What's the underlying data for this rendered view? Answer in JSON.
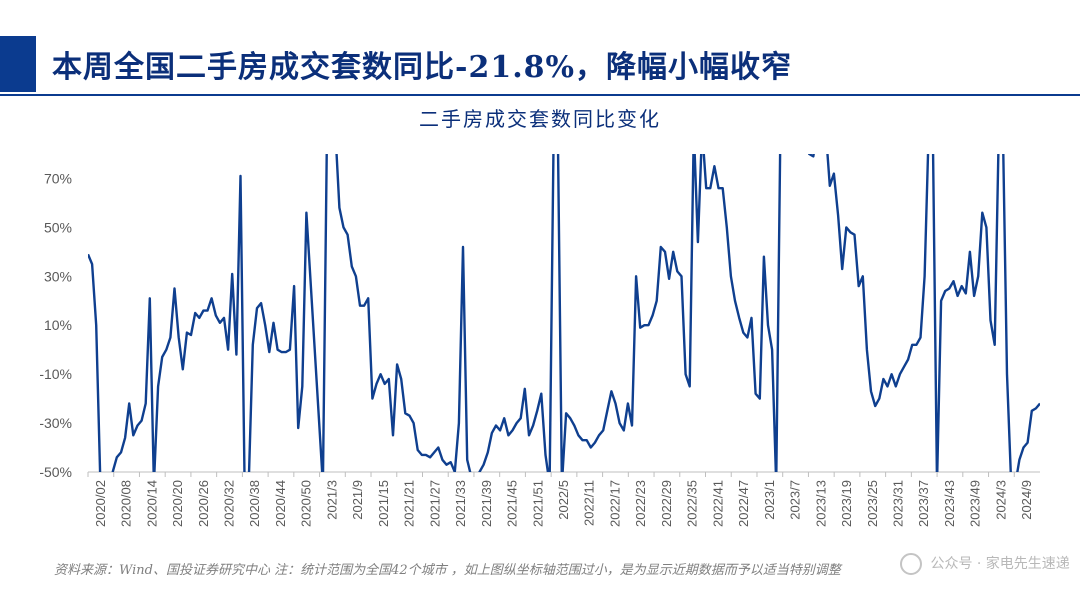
{
  "header": {
    "title": "本周全国二手房成交套数同比-21.8%，降幅小幅收窄"
  },
  "footer": {
    "source_note": "资料来源：Wind、国投证券研究中心 注：统计范围为全国42个城市 ，如上图纵坐标轴范围过小，是为显示近期数据而予以适当特别调整",
    "watermark": "公众号 · 家电先生速递"
  },
  "colors": {
    "line": "#0f3f8f",
    "title": "#0b2f7a",
    "accent_bar": "#0b3b8f"
  },
  "chart_data": {
    "type": "line",
    "title": "二手房成交套数同比变化",
    "xlabel": "",
    "ylabel": "",
    "ylim": [
      -0.5,
      0.8
    ],
    "y_ticks": [
      -0.5,
      -0.3,
      -0.1,
      0.1,
      0.3,
      0.5,
      0.7
    ],
    "y_tick_labels": [
      "-50%",
      "-30%",
      "-10%",
      "10%",
      "30%",
      "50%",
      "70%"
    ],
    "x_tick_labels": [
      "2020/02",
      "2020/08",
      "2020/14",
      "2020/20",
      "2020/26",
      "2020/32",
      "2020/38",
      "2020/44",
      "2020/50",
      "2021/3",
      "2021/9",
      "2021/15",
      "2021/21",
      "2021/27",
      "2021/33",
      "2021/39",
      "2021/45",
      "2021/51",
      "2022/5",
      "2022/11",
      "2022/17",
      "2022/23",
      "2022/29",
      "2022/35",
      "2022/41",
      "2022/47",
      "2023/1",
      "2023/7",
      "2023/13",
      "2023/19",
      "2023/25",
      "2023/31",
      "2023/37",
      "2023/43",
      "2023/49",
      "2024/3",
      "2024/9"
    ],
    "grid": false,
    "legend": "none",
    "series": [
      {
        "name": "",
        "x_unit": "week index from 2020/02",
        "points": [
          [
            0,
            0.39
          ],
          [
            1,
            0.35
          ],
          [
            2,
            0.1
          ],
          [
            3,
            -0.55
          ],
          [
            4,
            -0.55
          ],
          [
            5,
            -0.55
          ],
          [
            6,
            -0.5
          ],
          [
            7,
            -0.44
          ],
          [
            8,
            -0.42
          ],
          [
            9,
            -0.36
          ],
          [
            10,
            -0.22
          ],
          [
            11,
            -0.35
          ],
          [
            12,
            -0.31
          ],
          [
            13,
            -0.29
          ],
          [
            14,
            -0.22
          ],
          [
            15,
            0.21
          ],
          [
            16,
            -0.55
          ],
          [
            17,
            -0.15
          ],
          [
            18,
            -0.03
          ],
          [
            19,
            0.0
          ],
          [
            20,
            0.05
          ],
          [
            21,
            0.25
          ],
          [
            22,
            0.05
          ],
          [
            23,
            -0.08
          ],
          [
            24,
            0.07
          ],
          [
            25,
            0.06
          ],
          [
            26,
            0.15
          ],
          [
            27,
            0.13
          ],
          [
            28,
            0.16
          ],
          [
            29,
            0.16
          ],
          [
            30,
            0.21
          ],
          [
            31,
            0.14
          ],
          [
            32,
            0.11
          ],
          [
            33,
            0.13
          ],
          [
            34,
            0.0
          ],
          [
            35,
            0.31
          ],
          [
            36,
            -0.02
          ],
          [
            37,
            0.71
          ],
          [
            38,
            -0.55
          ],
          [
            39,
            -0.55
          ],
          [
            40,
            0.02
          ],
          [
            41,
            0.17
          ],
          [
            42,
            0.19
          ],
          [
            43,
            0.1
          ],
          [
            44,
            -0.01
          ],
          [
            45,
            0.11
          ],
          [
            46,
            0.0
          ],
          [
            47,
            -0.01
          ],
          [
            48,
            -0.01
          ],
          [
            49,
            0.0
          ],
          [
            50,
            0.26
          ],
          [
            51,
            -0.32
          ],
          [
            52,
            -0.15
          ],
          [
            53,
            0.56
          ],
          [
            57,
            -0.55
          ],
          [
            58,
            0.9
          ],
          [
            59,
            0.9
          ],
          [
            60,
            0.9
          ],
          [
            61,
            0.58
          ],
          [
            62,
            0.5
          ],
          [
            63,
            0.47
          ],
          [
            64,
            0.34
          ],
          [
            65,
            0.3
          ],
          [
            66,
            0.18
          ],
          [
            67,
            0.18
          ],
          [
            68,
            0.21
          ],
          [
            69,
            -0.2
          ],
          [
            70,
            -0.14
          ],
          [
            71,
            -0.1
          ],
          [
            72,
            -0.14
          ],
          [
            73,
            -0.12
          ],
          [
            74,
            -0.35
          ],
          [
            75,
            -0.06
          ],
          [
            76,
            -0.12
          ],
          [
            77,
            -0.26
          ],
          [
            78,
            -0.27
          ],
          [
            79,
            -0.3
          ],
          [
            80,
            -0.41
          ],
          [
            81,
            -0.43
          ],
          [
            82,
            -0.43
          ],
          [
            83,
            -0.44
          ],
          [
            84,
            -0.42
          ],
          [
            85,
            -0.4
          ],
          [
            86,
            -0.45
          ],
          [
            87,
            -0.47
          ],
          [
            88,
            -0.46
          ],
          [
            89,
            -0.5
          ],
          [
            90,
            -0.3
          ],
          [
            91,
            0.42
          ],
          [
            92,
            -0.45
          ],
          [
            93,
            -0.52
          ],
          [
            94,
            -0.55
          ],
          [
            95,
            -0.5
          ],
          [
            96,
            -0.47
          ],
          [
            97,
            -0.42
          ],
          [
            98,
            -0.34
          ],
          [
            99,
            -0.31
          ],
          [
            100,
            -0.33
          ],
          [
            101,
            -0.28
          ],
          [
            102,
            -0.35
          ],
          [
            103,
            -0.33
          ],
          [
            104,
            -0.3
          ],
          [
            105,
            -0.28
          ],
          [
            106,
            -0.16
          ],
          [
            107,
            -0.35
          ],
          [
            108,
            -0.31
          ],
          [
            109,
            -0.25
          ],
          [
            110,
            -0.18
          ],
          [
            111,
            -0.43
          ],
          [
            112,
            -0.55
          ],
          [
            113,
            0.9
          ],
          [
            114,
            0.9
          ],
          [
            115,
            -0.55
          ],
          [
            116,
            -0.26
          ],
          [
            117,
            -0.28
          ],
          [
            118,
            -0.31
          ],
          [
            119,
            -0.35
          ],
          [
            120,
            -0.37
          ],
          [
            121,
            -0.37
          ],
          [
            122,
            -0.4
          ],
          [
            123,
            -0.38
          ],
          [
            124,
            -0.35
          ],
          [
            125,
            -0.33
          ],
          [
            126,
            -0.25
          ],
          [
            127,
            -0.17
          ],
          [
            128,
            -0.22
          ],
          [
            129,
            -0.3
          ],
          [
            130,
            -0.33
          ],
          [
            131,
            -0.22
          ],
          [
            132,
            -0.31
          ],
          [
            133,
            0.3
          ],
          [
            134,
            0.09
          ],
          [
            135,
            0.1
          ],
          [
            136,
            0.1
          ],
          [
            137,
            0.14
          ],
          [
            138,
            0.2
          ],
          [
            139,
            0.42
          ],
          [
            140,
            0.4
          ],
          [
            141,
            0.29
          ],
          [
            142,
            0.4
          ],
          [
            143,
            0.32
          ],
          [
            144,
            0.3
          ],
          [
            145,
            -0.1
          ],
          [
            146,
            -0.15
          ],
          [
            147,
            0.9
          ],
          [
            148,
            0.44
          ],
          [
            149,
            0.9
          ],
          [
            150,
            0.66
          ],
          [
            151,
            0.66
          ],
          [
            152,
            0.75
          ],
          [
            153,
            0.66
          ],
          [
            154,
            0.66
          ],
          [
            155,
            0.5
          ],
          [
            156,
            0.3
          ],
          [
            157,
            0.2
          ],
          [
            158,
            0.13
          ],
          [
            159,
            0.07
          ],
          [
            160,
            0.05
          ],
          [
            161,
            0.13
          ],
          [
            162,
            -0.18
          ],
          [
            163,
            -0.2
          ],
          [
            164,
            0.38
          ],
          [
            165,
            0.1
          ],
          [
            166,
            0.0
          ],
          [
            167,
            -0.55
          ],
          [
            168,
            0.9
          ],
          [
            169,
            0.9
          ],
          [
            170,
            0.9
          ],
          [
            171,
            0.9
          ],
          [
            172,
            0.9
          ],
          [
            173,
            0.9
          ],
          [
            174,
            0.9
          ],
          [
            175,
            0.8
          ],
          [
            176,
            0.79
          ],
          [
            177,
            0.9
          ],
          [
            178,
            0.9
          ],
          [
            179,
            0.9
          ],
          [
            180,
            0.67
          ],
          [
            181,
            0.72
          ],
          [
            182,
            0.55
          ],
          [
            183,
            0.33
          ],
          [
            184,
            0.5
          ],
          [
            185,
            0.48
          ],
          [
            186,
            0.47
          ],
          [
            187,
            0.26
          ],
          [
            188,
            0.3
          ],
          [
            189,
            0.0
          ],
          [
            190,
            -0.17
          ],
          [
            191,
            -0.23
          ],
          [
            192,
            -0.2
          ],
          [
            193,
            -0.12
          ],
          [
            194,
            -0.15
          ],
          [
            195,
            -0.1
          ],
          [
            196,
            -0.15
          ],
          [
            197,
            -0.1
          ],
          [
            198,
            -0.07
          ],
          [
            199,
            -0.04
          ],
          [
            200,
            0.02
          ],
          [
            201,
            0.02
          ],
          [
            202,
            0.05
          ],
          [
            203,
            0.3
          ],
          [
            204,
            0.9
          ],
          [
            205,
            0.9
          ],
          [
            206,
            -0.55
          ],
          [
            207,
            0.2
          ],
          [
            208,
            0.24
          ],
          [
            209,
            0.25
          ],
          [
            210,
            0.28
          ],
          [
            211,
            0.22
          ],
          [
            212,
            0.26
          ],
          [
            213,
            0.23
          ],
          [
            214,
            0.4
          ],
          [
            215,
            0.22
          ],
          [
            216,
            0.3
          ],
          [
            217,
            0.56
          ],
          [
            218,
            0.5
          ],
          [
            219,
            0.12
          ],
          [
            220,
            0.02
          ],
          [
            221,
            0.9
          ],
          [
            222,
            0.9
          ],
          [
            223,
            -0.1
          ],
          [
            224,
            -0.55
          ],
          [
            225,
            -0.55
          ],
          [
            226,
            -0.45
          ],
          [
            227,
            -0.4
          ],
          [
            228,
            -0.38
          ],
          [
            229,
            -0.25
          ],
          [
            230,
            -0.24
          ],
          [
            231,
            -0.22
          ]
        ]
      }
    ],
    "x_max": 231
  }
}
